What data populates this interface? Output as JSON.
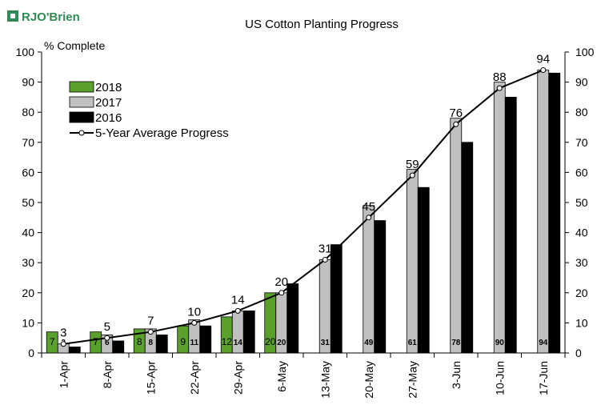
{
  "logo": {
    "text": "RJO'Brien",
    "color": "#2e8b57"
  },
  "chart_data": {
    "type": "bar",
    "title": "US Cotton Planting Progress",
    "ylabel": "% Complete",
    "ylim": [
      0,
      100
    ],
    "yticks": [
      0,
      10,
      20,
      30,
      40,
      50,
      60,
      70,
      80,
      90,
      100
    ],
    "categories": [
      "1-Apr",
      "8-Apr",
      "15-Apr",
      "22-Apr",
      "29-Apr",
      "6-May",
      "13-May",
      "20-May",
      "27-May",
      "3-Jun",
      "10-Jun",
      "17-Jun"
    ],
    "series": [
      {
        "name": "2018",
        "color": "#5aa02c",
        "values": [
          7,
          7,
          8,
          9,
          12,
          20,
          null,
          null,
          null,
          null,
          null,
          null
        ]
      },
      {
        "name": "2017",
        "color": "#c0c0c0",
        "values": [
          3,
          6,
          8,
          11,
          14,
          20,
          31,
          49,
          61,
          78,
          90,
          94
        ]
      },
      {
        "name": "2016",
        "color": "#000000",
        "values": [
          2,
          4,
          6,
          9,
          14,
          23,
          36,
          44,
          55,
          70,
          85,
          93
        ]
      }
    ],
    "line": {
      "name": "5-Year Average Progress",
      "values": [
        3,
        5,
        7,
        10,
        14,
        20,
        31,
        45,
        59,
        76,
        88,
        94
      ]
    },
    "legend_position": "top-left",
    "grid": false
  }
}
